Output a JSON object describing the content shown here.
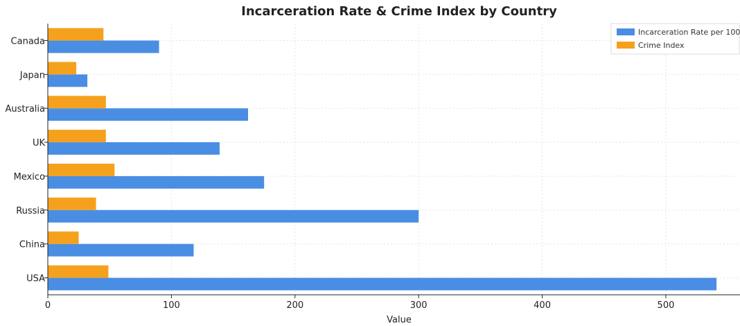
{
  "chart_data": {
    "type": "bar",
    "orientation": "horizontal",
    "title": "Incarceration Rate & Crime Index by Country",
    "xlabel": "Value",
    "ylabel": "",
    "categories": [
      "USA",
      "China",
      "Russia",
      "Mexico",
      "UK",
      "Australia",
      "Japan",
      "Canada"
    ],
    "series": [
      {
        "name": "Incarceration Rate per 100",
        "color": "#4a8ee3",
        "values": [
          541,
          118,
          300,
          175,
          139,
          162,
          32,
          90
        ]
      },
      {
        "name": "Crime Index",
        "color": "#f5a11e",
        "values": [
          49,
          25,
          39,
          54,
          47,
          47,
          23,
          45
        ]
      }
    ],
    "xticks": [
      0,
      100,
      200,
      300,
      400,
      500
    ],
    "xlim": [
      0,
      560
    ],
    "grid": true,
    "legend_position": "top-right"
  }
}
